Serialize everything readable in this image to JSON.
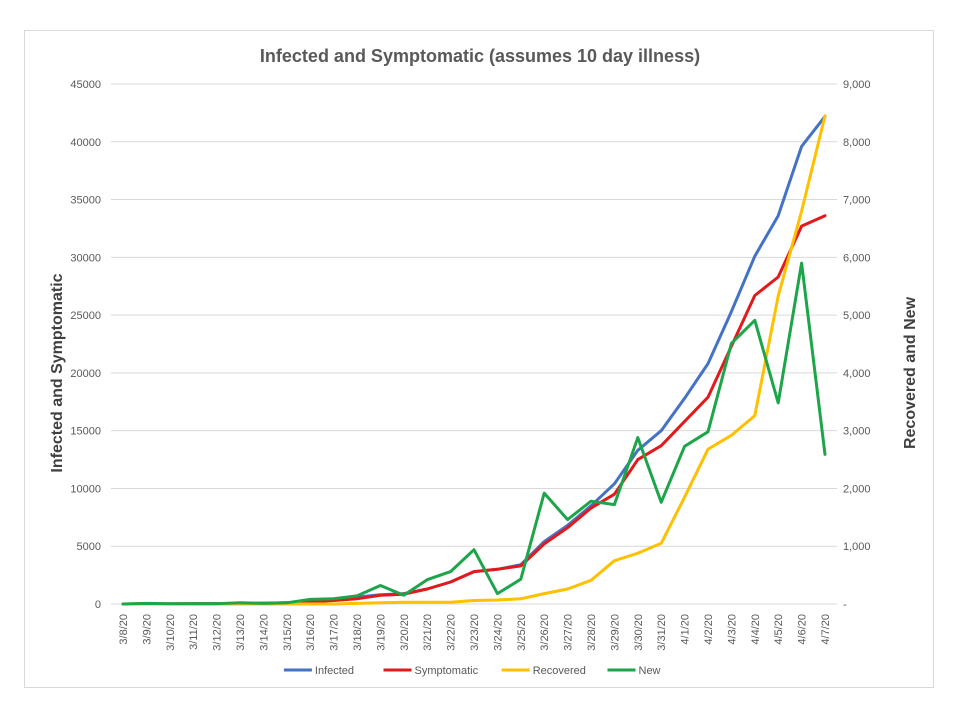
{
  "chart_data": {
    "type": "line",
    "title": "Infected and Symptomatic (assumes 10 day illness)",
    "ylabel": "Infected and Symptomatic",
    "y2label": "Recovered and New",
    "ylim": [
      0,
      45000
    ],
    "y2lim": [
      0,
      9000
    ],
    "yticks": [
      "0",
      "5000",
      "10000",
      "15000",
      "20000",
      "25000",
      "30000",
      "35000",
      "40000",
      "45000"
    ],
    "y2ticks": [
      "-",
      "1,000",
      "2,000",
      "3,000",
      "4,000",
      "5,000",
      "6,000",
      "7,000",
      "8,000",
      "9,000"
    ],
    "grid": true,
    "legend_position": "bottom",
    "categories": [
      "3/8/20",
      "3/9/20",
      "3/10/20",
      "3/11/20",
      "3/12/20",
      "3/13/20",
      "3/14/20",
      "3/15/20",
      "3/16/20",
      "3/17/20",
      "3/18/20",
      "3/19/20",
      "3/20/20",
      "3/21/20",
      "3/22/20",
      "3/23/20",
      "3/24/20",
      "3/25/20",
      "3/26/20",
      "3/27/20",
      "3/28/20",
      "3/29/20",
      "3/30/20",
      "3/31/20",
      "4/1/20",
      "4/2/20",
      "4/3/20",
      "4/4/20",
      "4/5/20",
      "4/6/20",
      "4/7/20"
    ],
    "series": [
      {
        "name": "Infected",
        "axis": "left",
        "color": "#4472C4",
        "values": [
          0,
          5,
          10,
          15,
          20,
          40,
          60,
          100,
          200,
          350,
          600,
          800,
          900,
          1300,
          1900,
          2800,
          3000,
          3400,
          5400,
          6800,
          8500,
          10400,
          13300,
          15000,
          17800,
          20800,
          25300,
          30100,
          33600,
          39600,
          42200
        ]
      },
      {
        "name": "Symptomatic",
        "axis": "left",
        "color": "#E31A1C",
        "values": [
          0,
          5,
          10,
          15,
          20,
          40,
          60,
          100,
          180,
          300,
          450,
          750,
          850,
          1300,
          1900,
          2800,
          3000,
          3300,
          5200,
          6600,
          8300,
          9500,
          12500,
          13700,
          15800,
          17900,
          22300,
          26700,
          28300,
          32700,
          33600
        ]
      },
      {
        "name": "Recovered",
        "axis": "right",
        "color": "#FFC000",
        "values": [
          0,
          0,
          0,
          0,
          0,
          0,
          0,
          0,
          0,
          0,
          10,
          20,
          30,
          30,
          30,
          60,
          70,
          90,
          180,
          260,
          410,
          750,
          880,
          1050,
          1850,
          2680,
          2920,
          3260,
          5330,
          6800,
          8450
        ]
      },
      {
        "name": "New",
        "axis": "right",
        "color": "#1DA54A",
        "values": [
          0,
          10,
          5,
          5,
          5,
          20,
          10,
          20,
          80,
          90,
          140,
          320,
          150,
          420,
          560,
          940,
          180,
          430,
          1920,
          1460,
          1780,
          1720,
          2880,
          1760,
          2730,
          2980,
          4510,
          4910,
          3480,
          5900,
          2590
        ]
      }
    ]
  }
}
